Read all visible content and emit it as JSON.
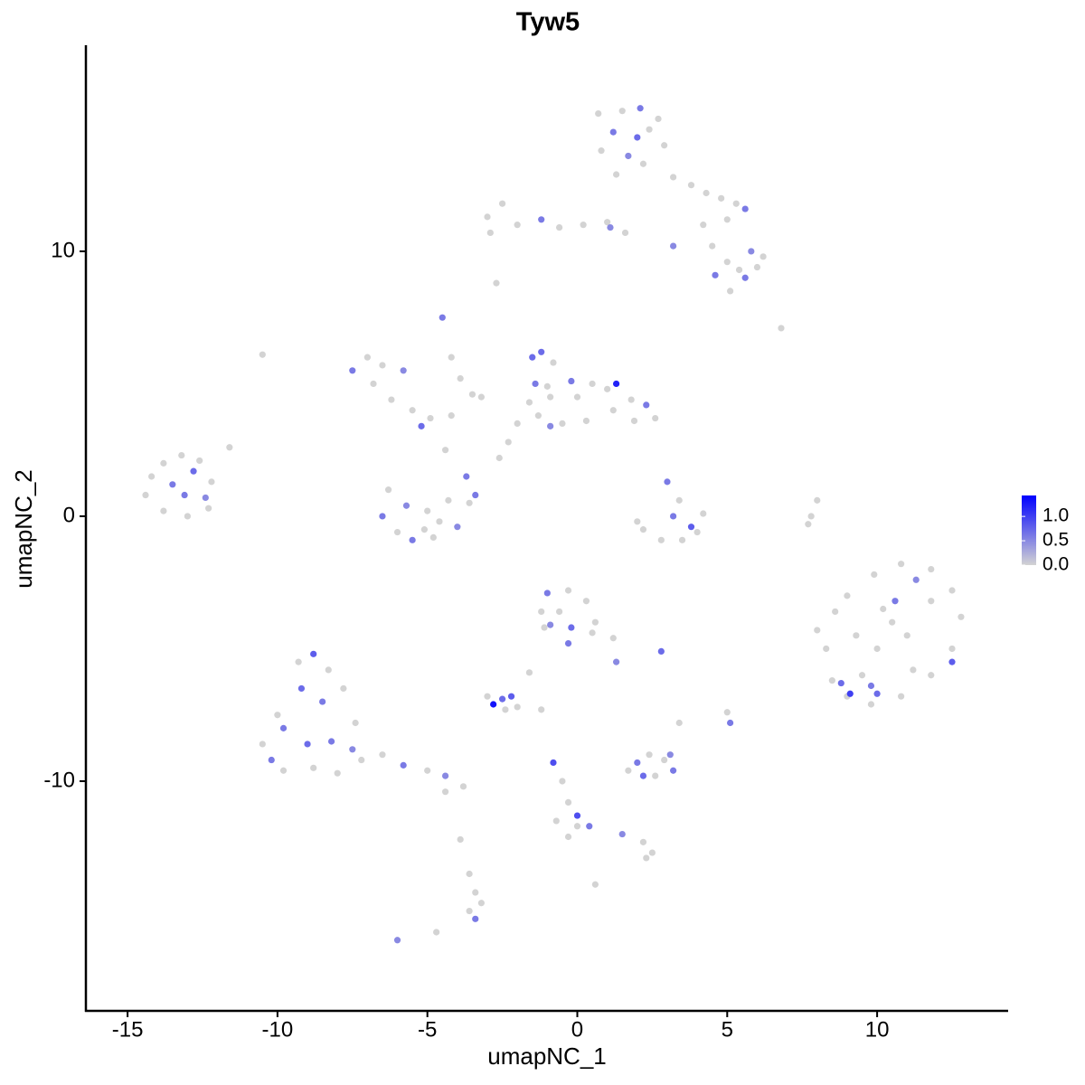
{
  "chart_data": {
    "type": "scatter",
    "title": "Tyw5",
    "x_label": "umapNC_1",
    "y_label": "umapNC_2",
    "xlim": [
      -16.39,
      14.37
    ],
    "ylim": [
      -18.67,
      17.78
    ],
    "xticks": [
      -15,
      -10,
      -5,
      0,
      5,
      10
    ],
    "yticks": [
      -10,
      0,
      10
    ],
    "color_low": "#d3d3d3",
    "color_high": "#0000ff",
    "color_lim": [
      0,
      1.43
    ],
    "color_ticks": [
      {
        "value": 0,
        "label": "0.0"
      },
      {
        "value": 0.5,
        "label": "0.5"
      },
      {
        "value": 1,
        "label": "1.0"
      }
    ],
    "x": [
      -14.2,
      -13.8,
      -13.2,
      -12.6,
      -12.2,
      -12.3,
      -13.0,
      -13.8,
      -14.4,
      -13.5,
      -12.8,
      -13.1,
      -12.4,
      -11.6,
      -10.5,
      -10.0,
      -9.3,
      -8.8,
      -8.3,
      -7.8,
      -7.4,
      -8.5,
      -9.2,
      -9.8,
      -9.0,
      -8.2,
      -7.5,
      -8.8,
      -9.8,
      -10.2,
      -8.0,
      -7.2,
      -6.5,
      -5.8,
      -5.0,
      -4.4,
      -3.8,
      -4.4,
      -6.3,
      -6.5,
      -6.0,
      -5.5,
      -4.8,
      -4.0,
      -3.6,
      -3.7,
      -4.3,
      -5.0,
      -5.7,
      -5.1,
      -3.4,
      -4.6,
      -7.5,
      -7.0,
      -6.8,
      -6.2,
      -5.5,
      -4.9,
      -4.2,
      -5.2,
      -5.8,
      -6.5,
      -4.5,
      -4.2,
      -3.9,
      -3.5,
      -4.4,
      -3.2,
      -1.5,
      -1.2,
      -0.8,
      -1.4,
      -0.9,
      -1.3,
      -0.5,
      0.0,
      0.5,
      1.0,
      1.3,
      1.8,
      2.3,
      2.6,
      1.9,
      1.2,
      0.3,
      -0.2,
      -1.0,
      -1.6,
      -2.0,
      -2.3,
      -2.6,
      -0.9,
      0.7,
      1.5,
      2.1,
      2.7,
      2.9,
      2.2,
      1.3,
      0.8,
      1.2,
      2.0,
      1.7,
      2.4,
      3.2,
      3.8,
      4.3,
      4.8,
      5.3,
      5.6,
      5.0,
      4.2,
      4.5,
      5.0,
      5.4,
      5.6,
      6.0,
      6.2,
      5.8,
      4.6,
      5.1,
      3.2,
      -3.0,
      -2.5,
      -2.9,
      -2.0,
      -1.2,
      -0.6,
      0.2,
      1.0,
      1.6,
      1.1,
      -2.7,
      -10.5,
      6.8,
      8.0,
      8.3,
      8.5,
      9.0,
      9.8,
      10.8,
      11.8,
      12.5,
      12.8,
      12.5,
      11.8,
      10.8,
      9.9,
      9.0,
      8.6,
      10.2,
      11.0,
      10.0,
      9.3,
      11.8,
      11.2,
      9.5,
      10.5,
      9.8,
      8.8,
      9.1,
      10.0,
      10.6,
      12.5,
      11.3,
      8.0,
      7.8,
      7.7,
      3.0,
      3.4,
      3.2,
      4.2,
      4.0,
      3.5,
      2.8,
      2.2,
      2.0,
      3.8,
      -1.0,
      -0.3,
      0.3,
      0.6,
      1.2,
      1.3,
      0.5,
      -0.3,
      -1.1,
      -1.2,
      -0.6,
      -0.2,
      -0.9,
      -3.0,
      -2.8,
      -2.5,
      -2.2,
      -2.0,
      -2.4,
      -1.6,
      -1.2,
      2.8,
      5.0,
      5.1,
      3.4,
      1.7,
      2.0,
      2.4,
      2.9,
      3.2,
      2.6,
      2.2,
      3.1,
      -0.8,
      -0.5,
      -0.3,
      0.0,
      0.0,
      -0.3,
      0.4,
      1.5,
      2.2,
      2.5,
      2.3,
      -0.7,
      0.6,
      -3.6,
      -3.4,
      -3.2,
      -3.4,
      -3.6,
      -3.9,
      -6.0,
      -4.7
    ],
    "y": [
      1.5,
      2.0,
      2.3,
      2.1,
      1.3,
      0.3,
      0.0,
      0.2,
      0.8,
      1.2,
      1.7,
      0.8,
      0.7,
      2.6,
      -8.6,
      -7.5,
      -5.5,
      -5.2,
      -5.8,
      -6.5,
      -7.8,
      -7.0,
      -6.5,
      -8.0,
      -8.6,
      -8.5,
      -8.8,
      -9.5,
      -9.6,
      -9.2,
      -9.7,
      -9.2,
      -9.0,
      -9.4,
      -9.6,
      -9.8,
      -10.2,
      -10.4,
      1.0,
      0.0,
      -0.6,
      -0.9,
      -0.8,
      -0.4,
      0.5,
      1.5,
      0.6,
      0.2,
      0.4,
      -0.5,
      0.8,
      -0.2,
      5.5,
      6.0,
      5.0,
      4.4,
      4.0,
      3.7,
      3.8,
      3.4,
      5.5,
      5.7,
      7.5,
      6.0,
      5.2,
      4.6,
      2.5,
      4.5,
      6.0,
      6.2,
      5.8,
      5.0,
      4.5,
      3.8,
      3.5,
      4.5,
      5.0,
      4.8,
      5.0,
      4.4,
      4.2,
      3.7,
      3.6,
      4.0,
      3.6,
      5.1,
      4.9,
      4.3,
      3.5,
      2.8,
      2.2,
      3.4,
      15.2,
      15.3,
      15.4,
      15.0,
      14.0,
      13.3,
      12.9,
      13.8,
      14.5,
      14.3,
      13.6,
      14.6,
      12.8,
      12.5,
      12.2,
      12.0,
      11.8,
      11.6,
      11.2,
      11.0,
      10.2,
      9.6,
      9.3,
      9.0,
      9.4,
      9.8,
      10.0,
      9.1,
      8.5,
      10.2,
      11.3,
      11.8,
      10.7,
      11.0,
      11.2,
      10.9,
      11.0,
      11.1,
      10.7,
      10.9,
      8.8,
      6.1,
      7.1,
      -4.3,
      -5.0,
      -6.2,
      -6.8,
      -7.1,
      -6.8,
      -6.0,
      -5.0,
      -3.8,
      -2.8,
      -2.0,
      -1.8,
      -2.2,
      -3.0,
      -3.6,
      -3.5,
      -4.5,
      -5.0,
      -4.5,
      -3.2,
      -5.8,
      -6.0,
      -4.0,
      -6.4,
      -6.3,
      -6.7,
      -6.7,
      -3.2,
      -5.5,
      -2.4,
      0.6,
      0.0,
      -0.3,
      1.3,
      0.6,
      0.0,
      0.1,
      -0.6,
      -0.9,
      -0.9,
      -0.5,
      -0.2,
      -0.4,
      -2.9,
      -2.8,
      -3.2,
      -4.0,
      -4.6,
      -5.5,
      -4.4,
      -4.8,
      -4.2,
      -3.6,
      -3.6,
      -4.2,
      -4.1,
      -6.8,
      -7.1,
      -6.9,
      -6.8,
      -7.2,
      -7.3,
      -5.9,
      -7.3,
      -5.1,
      -7.4,
      -7.8,
      -7.8,
      -9.6,
      -9.3,
      -9.0,
      -9.2,
      -9.6,
      -9.8,
      -9.8,
      -9.0,
      -9.3,
      -10.0,
      -10.8,
      -11.3,
      -11.7,
      -12.1,
      -11.7,
      -12.0,
      -12.3,
      -12.7,
      -12.9,
      -11.5,
      -13.9,
      -13.5,
      -14.2,
      -14.6,
      -15.2,
      -14.9,
      -12.2,
      -16.0,
      -15.7
    ],
    "expression": [
      0,
      0,
      0,
      0,
      0,
      0,
      0,
      0,
      0,
      0.6,
      0.7,
      0.6,
      0.5,
      0,
      0,
      0,
      0,
      0.8,
      0,
      0,
      0,
      0.6,
      0.7,
      0.6,
      0.7,
      0.6,
      0.5,
      0,
      0,
      0.6,
      0,
      0,
      0,
      0.6,
      0,
      0.5,
      0,
      0,
      0,
      0.6,
      0,
      0.6,
      0,
      0.5,
      0,
      0.6,
      0,
      0,
      0.5,
      0,
      0.6,
      0,
      0.6,
      0,
      0,
      0,
      0,
      0,
      0,
      0.7,
      0.5,
      0,
      0.6,
      0,
      0,
      0,
      0,
      0,
      0.7,
      0.7,
      0,
      0.6,
      0,
      0,
      0,
      0,
      0,
      0,
      1.2,
      0,
      0.6,
      0,
      0,
      0,
      0,
      0.6,
      0,
      0,
      0,
      0,
      0,
      0.5,
      0,
      0,
      0.6,
      0,
      0,
      0,
      0,
      0,
      0.6,
      0.7,
      0.5,
      0,
      0,
      0,
      0,
      0,
      0,
      0.6,
      0,
      0,
      0,
      0,
      0,
      0.6,
      0,
      0,
      0.5,
      0.6,
      0,
      0.5,
      0,
      0,
      0,
      0,
      0.6,
      0,
      0,
      0,
      0,
      0.5,
      0,
      0,
      0,
      0,
      0,
      0,
      0,
      0,
      0,
      0,
      0,
      0,
      0,
      0,
      0,
      0,
      0,
      0,
      0,
      0,
      0,
      0,
      0,
      0,
      0,
      0,
      0.6,
      0.7,
      1.0,
      0.7,
      0.6,
      0.8,
      0.5,
      0,
      0,
      0,
      0.6,
      0,
      0.6,
      0,
      0,
      0,
      0,
      0,
      0,
      0.8,
      0.6,
      0,
      0,
      0,
      0,
      0.5,
      0,
      0.6,
      0,
      0,
      0,
      0.7,
      0.5,
      0,
      1.3,
      0.7,
      0.8,
      0,
      0,
      0,
      0,
      0.7,
      0,
      0.6,
      0,
      0,
      0.6,
      0,
      0,
      0.6,
      0,
      0.7,
      0.5,
      0.9,
      0,
      0,
      0.9,
      0,
      0,
      0.6,
      0.5,
      0,
      0,
      0,
      0,
      0,
      0,
      0,
      0,
      0.6,
      0,
      0,
      0.5,
      0
    ]
  }
}
